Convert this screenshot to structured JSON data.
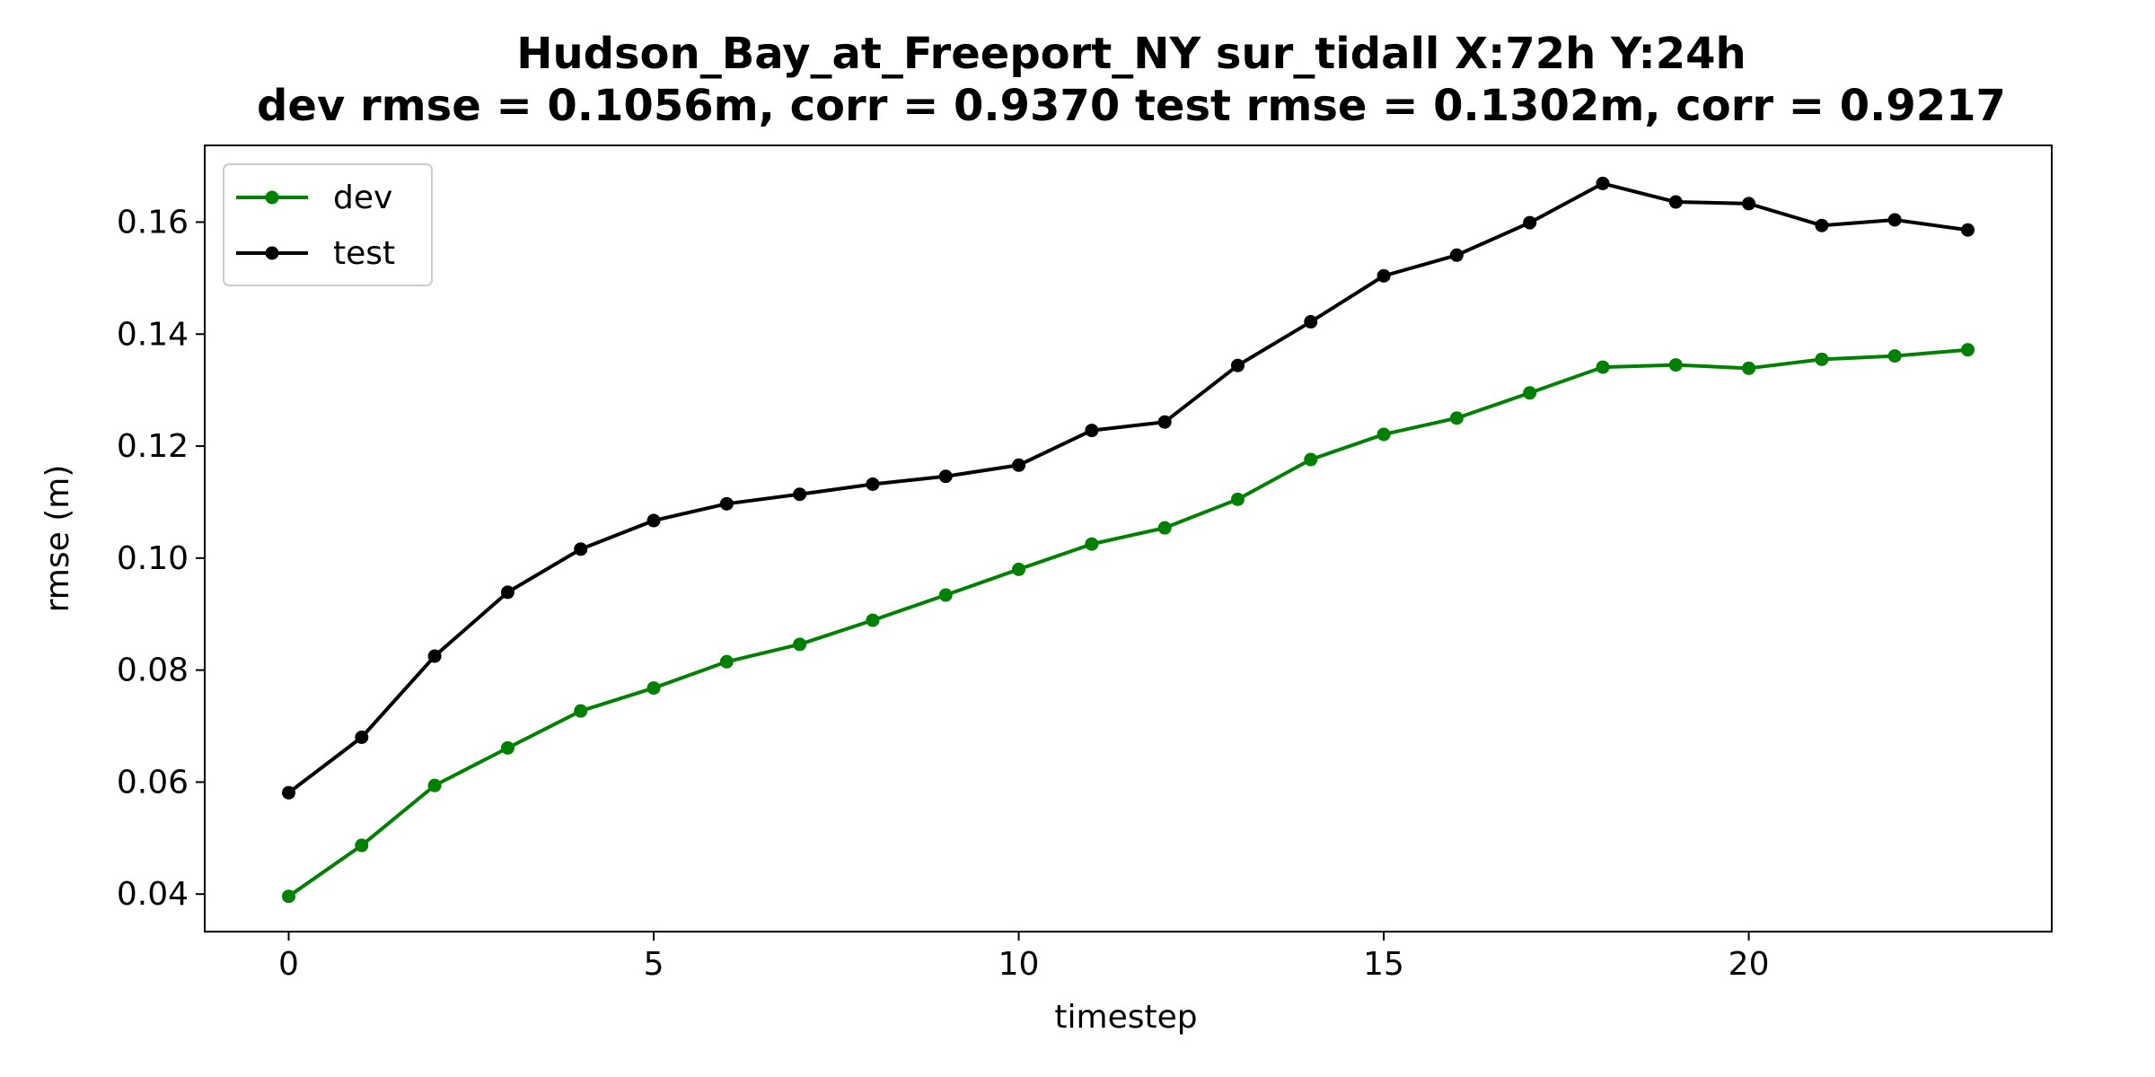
{
  "chart_data": {
    "type": "line",
    "title": "Hudson_Bay_at_Freeport_NY   sur_tidall   X:72h   Y:24h",
    "subtitle": "dev rmse = 0.1056m, corr = 0.9370   test rmse = 0.1302m, corr = 0.9217",
    "xlabel": "timestep",
    "ylabel": "rmse (m)",
    "xlim": [
      -1.15,
      24.15
    ],
    "ylim": [
      0.0333,
      0.1737
    ],
    "xticks": [
      0,
      5,
      10,
      15,
      20
    ],
    "xtick_labels": [
      "0",
      "5",
      "10",
      "15",
      "20"
    ],
    "yticks": [
      0.04,
      0.06,
      0.08,
      0.1,
      0.12,
      0.14,
      0.16
    ],
    "ytick_labels": [
      "0.04",
      "0.06",
      "0.08",
      "0.10",
      "0.12",
      "0.14",
      "0.16"
    ],
    "grid": false,
    "legend_position": "top-left",
    "x": [
      0,
      1,
      2,
      3,
      4,
      5,
      6,
      7,
      8,
      9,
      10,
      11,
      12,
      13,
      14,
      15,
      16,
      17,
      18,
      19,
      20,
      21,
      22,
      23
    ],
    "series": [
      {
        "name": "dev",
        "color": "#008000",
        "values": [
          0.0396,
          0.0487,
          0.0594,
          0.0661,
          0.0727,
          0.0768,
          0.0815,
          0.0846,
          0.0889,
          0.0934,
          0.098,
          0.1025,
          0.1054,
          0.1105,
          0.1176,
          0.1221,
          0.125,
          0.1295,
          0.1341,
          0.1345,
          0.1339,
          0.1355,
          0.1361,
          0.1372
        ]
      },
      {
        "name": "test",
        "color": "#000000",
        "values": [
          0.0581,
          0.068,
          0.0825,
          0.0939,
          0.1016,
          0.1067,
          0.1097,
          0.1114,
          0.1132,
          0.1146,
          0.1166,
          0.1228,
          0.1243,
          0.1344,
          0.1422,
          0.1504,
          0.1541,
          0.1599,
          0.1669,
          0.1636,
          0.1633,
          0.1594,
          0.1604,
          0.1586
        ]
      }
    ]
  }
}
